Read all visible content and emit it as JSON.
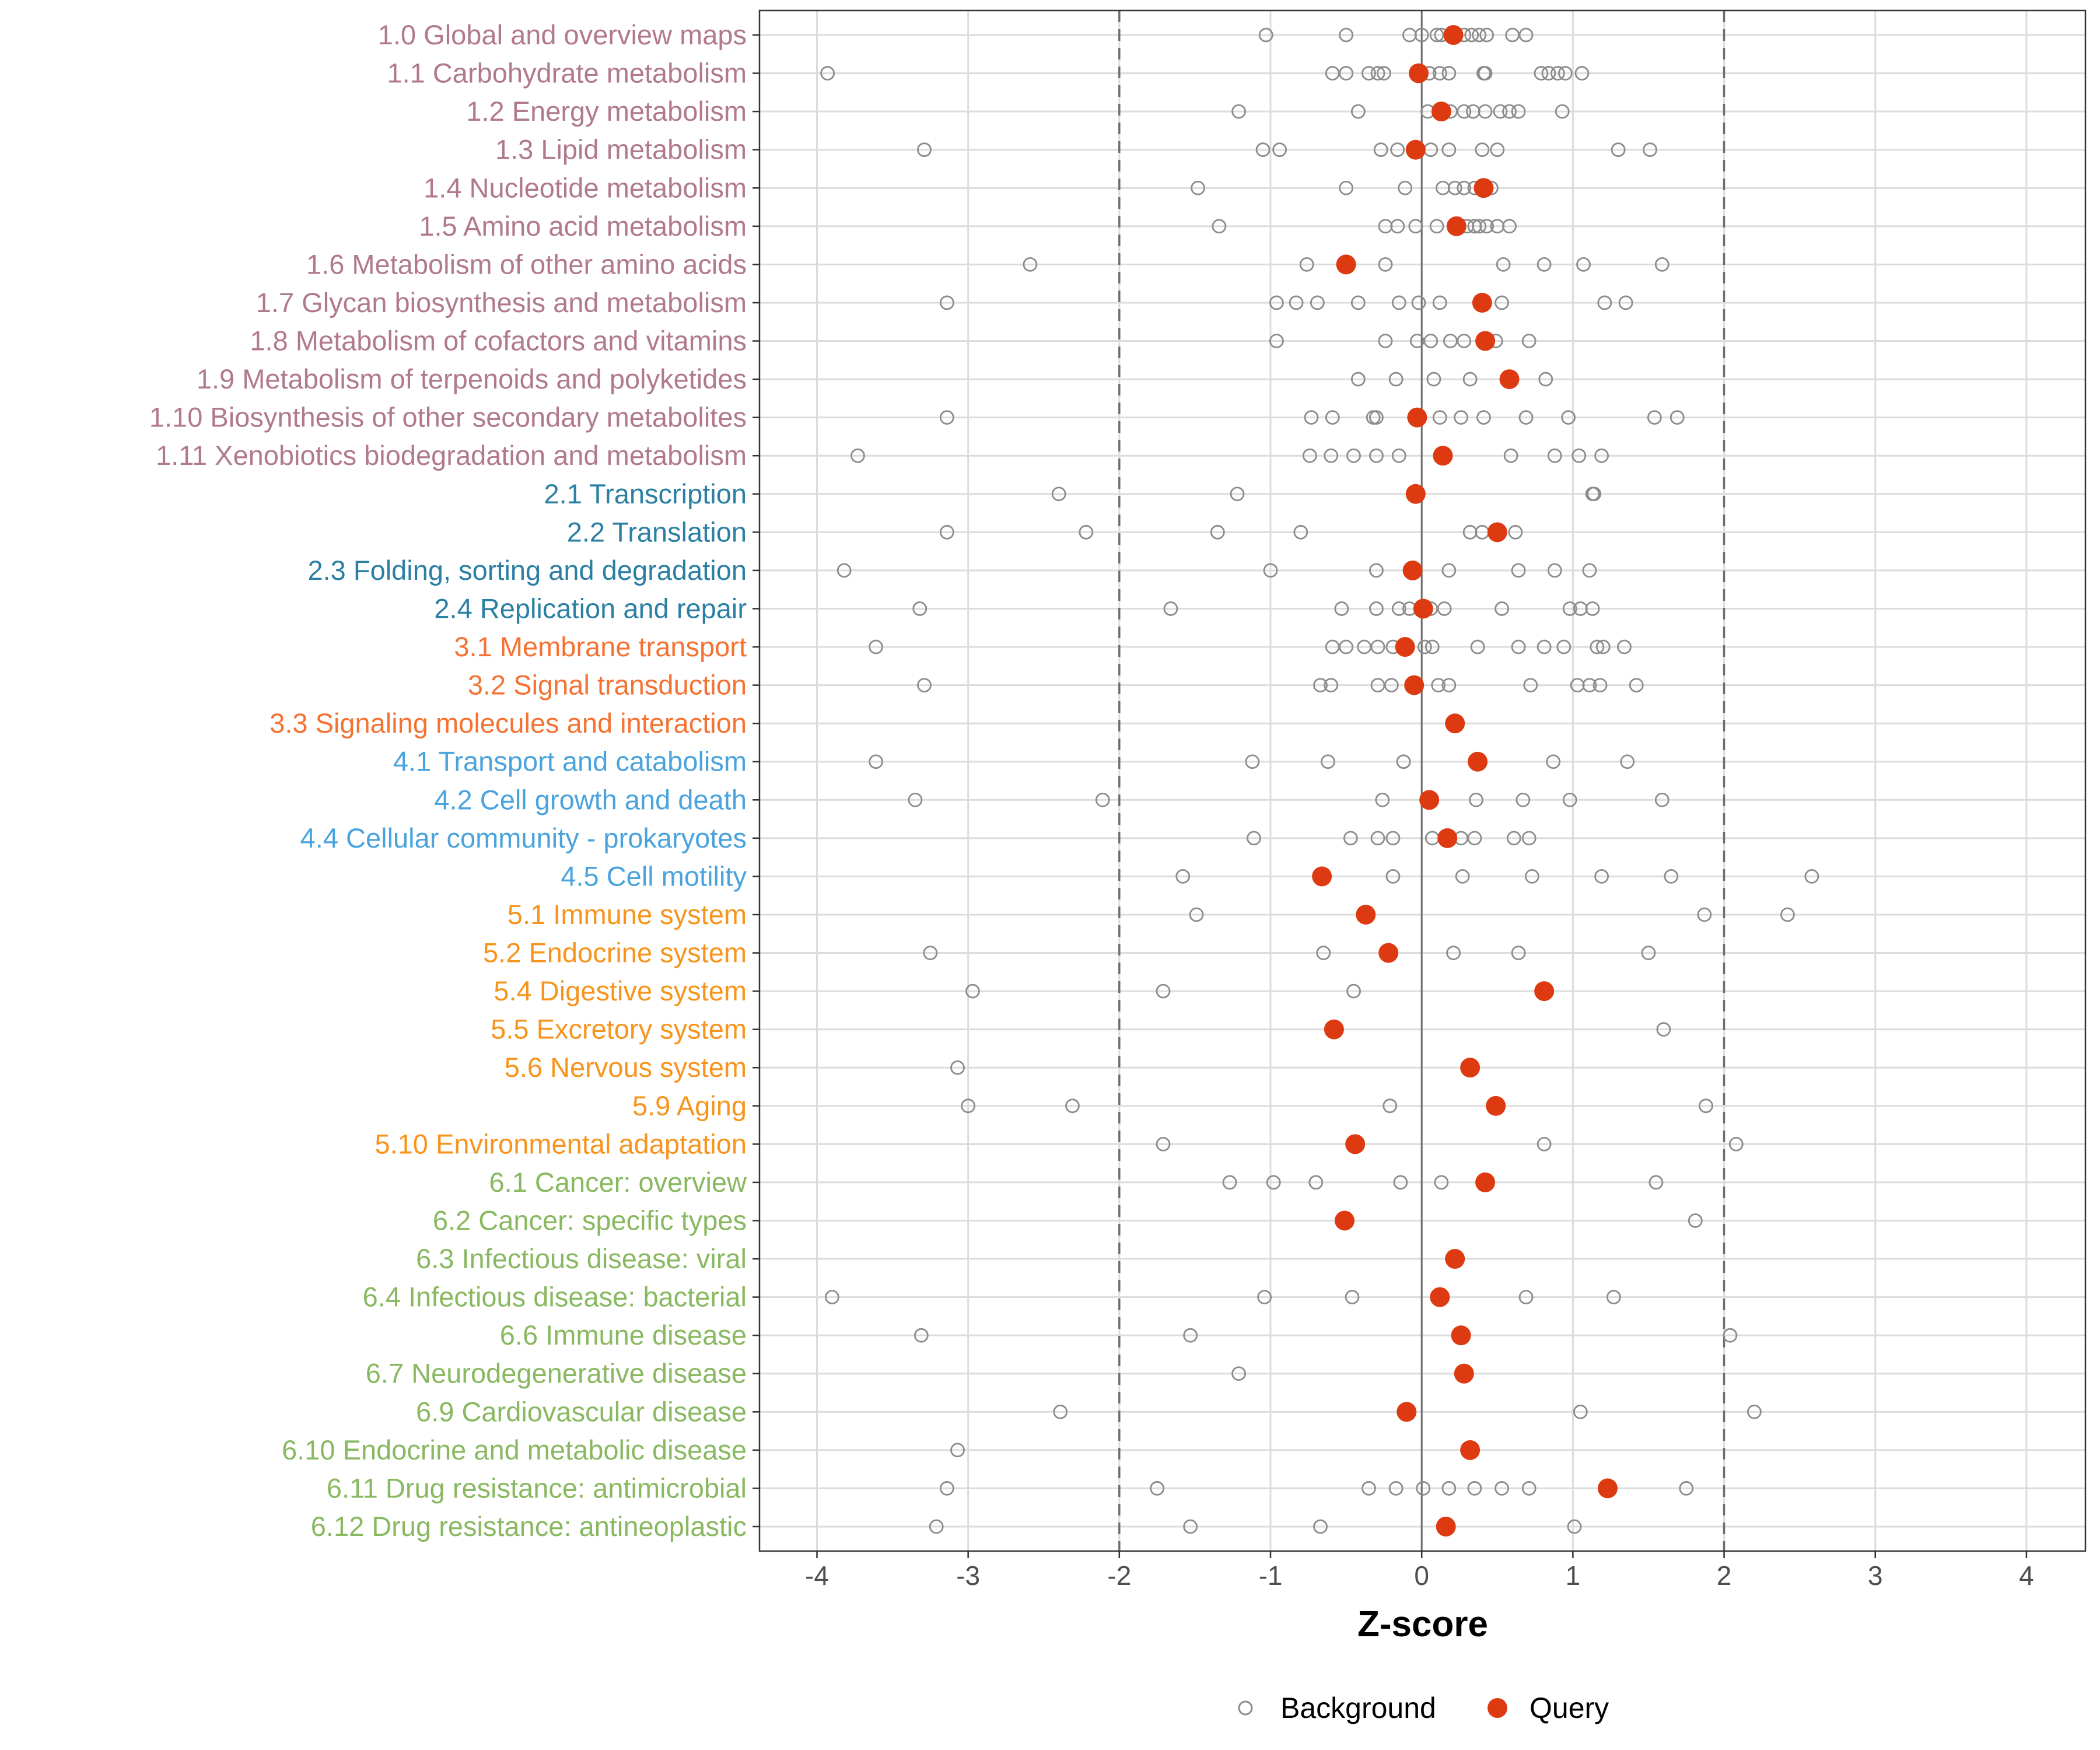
{
  "chart_data": {
    "type": "scatter",
    "title": "",
    "xlabel": "Z-score",
    "ylabel": "",
    "xlim": [
      -4.38,
      4.39
    ],
    "x_ticks": [
      "-4",
      "-3",
      "-2",
      "-1",
      "0",
      "1",
      "2",
      "3",
      "4"
    ],
    "reference_lines": {
      "solid": [
        0
      ],
      "dashed": [
        -2,
        2
      ]
    },
    "grid": true,
    "legend": {
      "placement": "bottom",
      "entries": [
        "Background",
        "Query"
      ]
    },
    "colors": {
      "query": "#de3a12",
      "background": "#8c8c8c",
      "group1": "#b07a8a",
      "group2": "#2a7fa3",
      "group3": "#f47232",
      "group4": "#4aa3dc",
      "group5": "#f7941d",
      "group6": "#88b860"
    },
    "categories": [
      {
        "label": "1.0 Global and overview maps",
        "group": 1,
        "query": 0.21,
        "background": [
          -1.03,
          -0.5,
          -0.08,
          0,
          0.1,
          0.13,
          0.28,
          0.33,
          0.38,
          0.43,
          0.6,
          0.69
        ]
      },
      {
        "label": "1.1 Carbohydrate metabolism",
        "group": 1,
        "query": -0.02,
        "background": [
          -3.93,
          -0.59,
          -0.5,
          -0.35,
          -0.29,
          -0.25,
          0.05,
          0.12,
          0.18,
          0.41,
          0.42,
          0.79,
          0.84,
          0.9,
          0.95,
          1.06
        ]
      },
      {
        "label": "1.2 Energy metabolism",
        "group": 1,
        "query": 0.13,
        "background": [
          -1.21,
          -0.42,
          0.04,
          0.19,
          0.28,
          0.34,
          0.42,
          0.52,
          0.58,
          0.64,
          0.93
        ]
      },
      {
        "label": "1.3 Lipid metabolism",
        "group": 1,
        "query": -0.04,
        "background": [
          -3.29,
          -1.05,
          -0.94,
          -0.27,
          -0.16,
          0.06,
          0.18,
          0.4,
          0.5,
          1.3,
          1.51
        ]
      },
      {
        "label": "1.4 Nucleotide metabolism",
        "group": 1,
        "query": 0.41,
        "background": [
          -1.48,
          -0.5,
          -0.11,
          0.14,
          0.22,
          0.28,
          0.35,
          0.46
        ]
      },
      {
        "label": "1.5 Amino acid metabolism",
        "group": 1,
        "query": 0.23,
        "background": [
          -1.34,
          -0.24,
          -0.16,
          -0.04,
          0.1,
          0.3,
          0.35,
          0.38,
          0.43,
          0.5,
          0.58
        ]
      },
      {
        "label": "1.6 Metabolism of other amino acids",
        "group": 1,
        "query": -0.5,
        "background": [
          -2.59,
          -0.76,
          -0.24,
          0.54,
          0.81,
          1.07,
          1.59
        ]
      },
      {
        "label": "1.7 Glycan biosynthesis and metabolism",
        "group": 1,
        "query": 0.4,
        "background": [
          -3.14,
          -0.96,
          -0.83,
          -0.69,
          -0.42,
          -0.15,
          -0.02,
          0.12,
          0.53,
          1.21,
          1.35
        ]
      },
      {
        "label": "1.8 Metabolism of cofactors and vitamins",
        "group": 1,
        "query": 0.42,
        "background": [
          -0.96,
          -0.24,
          -0.03,
          0.06,
          0.19,
          0.28,
          0.49,
          0.71
        ]
      },
      {
        "label": "1.9 Metabolism of terpenoids and polyketides",
        "group": 1,
        "query": 0.58,
        "background": [
          -0.42,
          -0.17,
          0.08,
          0.32,
          0.82
        ]
      },
      {
        "label": "1.10 Biosynthesis of other secondary metabolites",
        "group": 1,
        "query": -0.03,
        "background": [
          -3.14,
          -0.73,
          -0.59,
          -0.32,
          -0.3,
          0.12,
          0.26,
          0.41,
          0.69,
          0.97,
          1.54,
          1.69
        ]
      },
      {
        "label": "1.11 Xenobiotics biodegradation and metabolism",
        "group": 1,
        "query": 0.14,
        "background": [
          -3.73,
          -0.74,
          -0.6,
          -0.45,
          -0.3,
          -0.15,
          0.59,
          0.88,
          1.04,
          1.19
        ]
      },
      {
        "label": "2.1 Transcription",
        "group": 2,
        "query": -0.04,
        "background": [
          -2.4,
          -1.22,
          1.13,
          1.14
        ]
      },
      {
        "label": "2.2 Translation",
        "group": 2,
        "query": 0.5,
        "background": [
          -3.14,
          -2.22,
          -1.35,
          -0.8,
          0.32,
          0.4,
          0.62
        ]
      },
      {
        "label": "2.3 Folding, sorting and degradation",
        "group": 2,
        "query": -0.06,
        "background": [
          -3.82,
          -1.0,
          -0.3,
          0.18,
          0.64,
          0.88,
          1.11
        ]
      },
      {
        "label": "2.4 Replication and repair",
        "group": 2,
        "query": 0.01,
        "background": [
          -3.32,
          -1.66,
          -0.53,
          -0.3,
          -0.15,
          -0.08,
          0.06,
          0.15,
          0.53,
          0.98,
          1.05,
          1.13
        ]
      },
      {
        "label": "3.1 Membrane transport",
        "group": 3,
        "query": -0.11,
        "background": [
          -3.61,
          -0.59,
          -0.5,
          -0.38,
          -0.29,
          -0.19,
          0.02,
          0.07,
          0.37,
          0.64,
          0.81,
          0.94,
          1.16,
          1.2,
          1.34
        ]
      },
      {
        "label": "3.2 Signal transduction",
        "group": 3,
        "query": -0.05,
        "background": [
          -3.29,
          -0.67,
          -0.6,
          -0.29,
          -0.2,
          0.11,
          0.18,
          0.72,
          1.03,
          1.11,
          1.18,
          1.42
        ]
      },
      {
        "label": "3.3 Signaling molecules and interaction",
        "group": 3,
        "query": 0.22,
        "background": []
      },
      {
        "label": "4.1 Transport and catabolism",
        "group": 4,
        "query": 0.37,
        "background": [
          -3.61,
          -1.12,
          -0.62,
          -0.12,
          -0.12,
          0.87,
          1.36
        ]
      },
      {
        "label": "4.2 Cell growth and death",
        "group": 4,
        "query": 0.05,
        "background": [
          -3.35,
          -2.11,
          -0.26,
          0.36,
          0.67,
          0.98,
          1.59
        ]
      },
      {
        "label": "4.4 Cellular community - prokaryotes",
        "group": 4,
        "query": 0.17,
        "background": [
          -1.11,
          -0.47,
          -0.29,
          -0.19,
          0.07,
          0.26,
          0.35,
          0.61,
          0.71
        ]
      },
      {
        "label": "4.5 Cell motility",
        "group": 4,
        "query": -0.66,
        "background": [
          -1.58,
          -0.19,
          0.27,
          0.73,
          1.19,
          1.65,
          2.58
        ]
      },
      {
        "label": "5.1 Immune system",
        "group": 5,
        "query": -0.37,
        "background": [
          -1.49,
          1.87,
          2.42
        ]
      },
      {
        "label": "5.2 Endocrine system",
        "group": 5,
        "query": -0.22,
        "background": [
          -3.25,
          -0.65,
          0.21,
          0.64,
          1.5
        ]
      },
      {
        "label": "5.4 Digestive system",
        "group": 5,
        "query": 0.81,
        "background": [
          -2.97,
          -1.71,
          -0.45
        ]
      },
      {
        "label": "5.5 Excretory system",
        "group": 5,
        "query": -0.58,
        "background": [
          1.6
        ]
      },
      {
        "label": "5.6 Nervous system",
        "group": 5,
        "query": 0.32,
        "background": [
          -3.07
        ]
      },
      {
        "label": "5.9 Aging",
        "group": 5,
        "query": 0.49,
        "background": [
          -3.0,
          -2.31,
          -0.21,
          1.88
        ]
      },
      {
        "label": "5.10 Environmental adaptation",
        "group": 5,
        "query": -0.44,
        "background": [
          -1.71,
          0.81,
          2.08
        ]
      },
      {
        "label": "6.1 Cancer: overview",
        "group": 6,
        "query": 0.42,
        "background": [
          -1.27,
          -0.98,
          -0.7,
          -0.14,
          0.13,
          1.55
        ]
      },
      {
        "label": "6.2 Cancer: specific types",
        "group": 6,
        "query": -0.51,
        "background": [
          1.81
        ]
      },
      {
        "label": "6.3 Infectious disease: viral",
        "group": 6,
        "query": 0.22,
        "background": []
      },
      {
        "label": "6.4 Infectious disease: bacterial",
        "group": 6,
        "query": 0.12,
        "background": [
          -3.9,
          -1.04,
          -0.46,
          0.69,
          1.27
        ]
      },
      {
        "label": "6.6 Immune disease",
        "group": 6,
        "query": 0.26,
        "background": [
          -3.31,
          -1.53,
          2.04
        ]
      },
      {
        "label": "6.7 Neurodegenerative disease",
        "group": 6,
        "query": 0.28,
        "background": [
          -1.21
        ]
      },
      {
        "label": "6.9 Cardiovascular disease",
        "group": 6,
        "query": -0.1,
        "background": [
          -2.39,
          1.05,
          2.2
        ]
      },
      {
        "label": "6.10 Endocrine and metabolic disease",
        "group": 6,
        "query": 0.32,
        "background": [
          -3.07
        ]
      },
      {
        "label": "6.11 Drug resistance: antimicrobial",
        "group": 6,
        "query": 1.23,
        "background": [
          -3.14,
          -1.75,
          -0.35,
          -0.17,
          0.01,
          0.18,
          0.35,
          0.53,
          0.71,
          1.75
        ]
      },
      {
        "label": "6.12 Drug resistance: antineoplastic",
        "group": 6,
        "query": 0.16,
        "background": [
          -3.21,
          -1.53,
          -0.67,
          1.01
        ]
      }
    ]
  }
}
